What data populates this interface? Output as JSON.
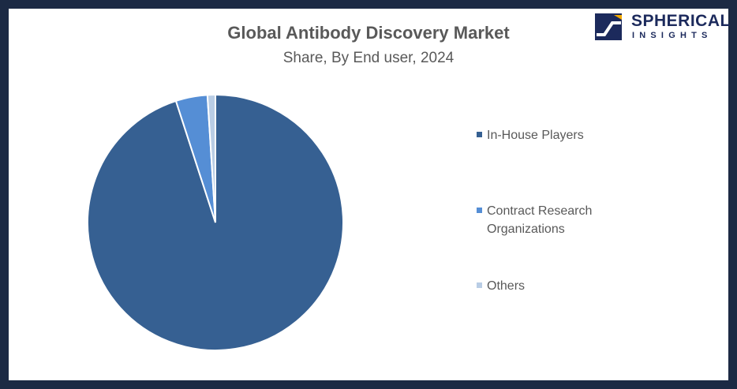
{
  "chart_data": {
    "type": "pie",
    "title": "Global Antibody Discovery Market",
    "subtitle": "Share, By End user, 2024",
    "slices": [
      {
        "label": "In-House Players",
        "value": 95,
        "color": "#366092"
      },
      {
        "label": "Contract Research Organizations",
        "value": 4,
        "color": "#558ed5"
      },
      {
        "label": "Others",
        "value": 1,
        "color": "#b9cde5"
      }
    ],
    "legend_position": "right",
    "start_angle_deg": 0,
    "direction": "clockwise"
  },
  "logo": {
    "line1": "SPHERICAL",
    "line2": "INSIGHTS"
  },
  "colors": {
    "frame": "#1c2a44",
    "logo": "#1c2a5c",
    "text": "#595959"
  }
}
